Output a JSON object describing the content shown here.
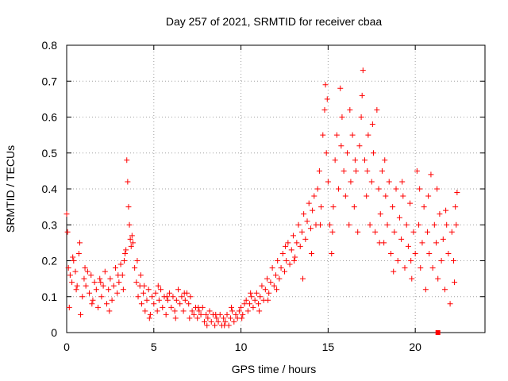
{
  "chart_data": {
    "type": "scatter",
    "title": "Day 257 of 2021, SRMTID for receiver cbaa",
    "xlabel": "GPS time / hours",
    "ylabel": "SRMTID / TECUs",
    "xlim": [
      0,
      24
    ],
    "ylim": [
      0,
      0.8
    ],
    "xticks": [
      0,
      5,
      10,
      15,
      20
    ],
    "yticks": [
      0,
      0.1,
      0.2,
      0.3,
      0.4,
      0.5,
      0.6,
      0.7,
      0.8
    ],
    "xtick_labels": [
      "0",
      "5",
      "10",
      "15",
      "20"
    ],
    "ytick_labels": [
      "0",
      "0.1",
      "0.2",
      "0.3",
      "0.4",
      "0.5",
      "0.6",
      "0.7",
      "0.8"
    ],
    "grid": true,
    "marker": "+",
    "color": "#ff0000",
    "series": [
      {
        "name": "SRMTID",
        "points": [
          [
            0.0,
            0.33
          ],
          [
            0.05,
            0.28
          ],
          [
            0.1,
            0.18
          ],
          [
            0.15,
            0.07
          ],
          [
            0.2,
            0.16
          ],
          [
            0.3,
            0.14
          ],
          [
            0.4,
            0.2
          ],
          [
            0.5,
            0.17
          ],
          [
            0.6,
            0.13
          ],
          [
            0.7,
            0.22
          ],
          [
            0.75,
            0.25
          ],
          [
            0.8,
            0.05
          ],
          [
            0.9,
            0.1
          ],
          [
            1.0,
            0.15
          ],
          [
            1.1,
            0.13
          ],
          [
            1.2,
            0.17
          ],
          [
            1.3,
            0.11
          ],
          [
            1.4,
            0.16
          ],
          [
            1.5,
            0.09
          ],
          [
            1.6,
            0.14
          ],
          [
            1.7,
            0.12
          ],
          [
            1.8,
            0.07
          ],
          [
            1.9,
            0.15
          ],
          [
            2.0,
            0.1
          ],
          [
            2.1,
            0.13
          ],
          [
            2.2,
            0.17
          ],
          [
            2.3,
            0.08
          ],
          [
            2.4,
            0.12
          ],
          [
            2.5,
            0.15
          ],
          [
            2.6,
            0.09
          ],
          [
            2.7,
            0.13
          ],
          [
            2.8,
            0.18
          ],
          [
            2.9,
            0.11
          ],
          [
            3.0,
            0.14
          ],
          [
            3.1,
            0.19
          ],
          [
            3.2,
            0.16
          ],
          [
            3.3,
            0.2
          ],
          [
            3.4,
            0.23
          ],
          [
            3.45,
            0.48
          ],
          [
            3.5,
            0.42
          ],
          [
            3.55,
            0.35
          ],
          [
            3.6,
            0.3
          ],
          [
            3.65,
            0.26
          ],
          [
            3.7,
            0.24
          ],
          [
            3.8,
            0.25
          ],
          [
            3.9,
            0.18
          ],
          [
            4.0,
            0.14
          ],
          [
            4.1,
            0.1
          ],
          [
            4.2,
            0.13
          ],
          [
            4.3,
            0.08
          ],
          [
            4.4,
            0.11
          ],
          [
            4.5,
            0.06
          ],
          [
            4.6,
            0.09
          ],
          [
            4.7,
            0.12
          ],
          [
            4.8,
            0.05
          ],
          [
            4.9,
            0.1
          ],
          [
            5.0,
            0.08
          ],
          [
            5.1,
            0.11
          ],
          [
            5.2,
            0.06
          ],
          [
            5.3,
            0.09
          ],
          [
            5.4,
            0.12
          ],
          [
            5.5,
            0.07
          ],
          [
            5.6,
            0.1
          ],
          [
            5.7,
            0.05
          ],
          [
            5.8,
            0.09
          ],
          [
            5.9,
            0.11
          ],
          [
            6.0,
            0.07
          ],
          [
            6.1,
            0.1
          ],
          [
            6.2,
            0.06
          ],
          [
            6.3,
            0.09
          ],
          [
            6.4,
            0.12
          ],
          [
            6.5,
            0.08
          ],
          [
            6.6,
            0.1
          ],
          [
            6.7,
            0.06
          ],
          [
            6.8,
            0.09
          ],
          [
            6.9,
            0.11
          ],
          [
            7.0,
            0.08
          ],
          [
            7.1,
            0.1
          ],
          [
            7.2,
            0.06
          ],
          [
            7.3,
            0.05
          ],
          [
            7.4,
            0.07
          ],
          [
            7.5,
            0.04
          ],
          [
            7.6,
            0.06
          ],
          [
            7.7,
            0.05
          ],
          [
            7.8,
            0.07
          ],
          [
            7.9,
            0.03
          ],
          [
            8.0,
            0.05
          ],
          [
            8.1,
            0.04
          ],
          [
            8.2,
            0.06
          ],
          [
            8.3,
            0.03
          ],
          [
            8.4,
            0.05
          ],
          [
            8.5,
            0.02
          ],
          [
            8.6,
            0.04
          ],
          [
            8.7,
            0.03
          ],
          [
            8.8,
            0.05
          ],
          [
            8.9,
            0.02
          ],
          [
            9.0,
            0.04
          ],
          [
            9.1,
            0.03
          ],
          [
            9.2,
            0.05
          ],
          [
            9.3,
            0.02
          ],
          [
            9.4,
            0.04
          ],
          [
            9.5,
            0.06
          ],
          [
            9.6,
            0.03
          ],
          [
            9.7,
            0.05
          ],
          [
            9.8,
            0.04
          ],
          [
            9.9,
            0.06
          ],
          [
            10.0,
            0.07
          ],
          [
            10.1,
            0.05
          ],
          [
            10.2,
            0.08
          ],
          [
            10.3,
            0.09
          ],
          [
            10.4,
            0.06
          ],
          [
            10.5,
            0.08
          ],
          [
            10.6,
            0.1
          ],
          [
            10.7,
            0.07
          ],
          [
            10.8,
            0.09
          ],
          [
            10.9,
            0.11
          ],
          [
            11.0,
            0.08
          ],
          [
            11.1,
            0.1
          ],
          [
            11.2,
            0.13
          ],
          [
            11.3,
            0.09
          ],
          [
            11.4,
            0.12
          ],
          [
            11.5,
            0.15
          ],
          [
            11.6,
            0.11
          ],
          [
            11.7,
            0.14
          ],
          [
            11.8,
            0.18
          ],
          [
            11.9,
            0.13
          ],
          [
            12.0,
            0.16
          ],
          [
            12.1,
            0.2
          ],
          [
            12.2,
            0.15
          ],
          [
            12.3,
            0.18
          ],
          [
            12.4,
            0.22
          ],
          [
            12.5,
            0.17
          ],
          [
            12.6,
            0.2
          ],
          [
            12.7,
            0.25
          ],
          [
            12.8,
            0.19
          ],
          [
            12.9,
            0.23
          ],
          [
            13.0,
            0.27
          ],
          [
            13.1,
            0.21
          ],
          [
            13.2,
            0.25
          ],
          [
            13.3,
            0.3
          ],
          [
            13.4,
            0.24
          ],
          [
            13.5,
            0.28
          ],
          [
            13.6,
            0.33
          ],
          [
            13.7,
            0.26
          ],
          [
            13.8,
            0.31
          ],
          [
            13.9,
            0.36
          ],
          [
            14.0,
            0.29
          ],
          [
            14.1,
            0.34
          ],
          [
            14.2,
            0.38
          ],
          [
            14.3,
            0.3
          ],
          [
            14.4,
            0.4
          ],
          [
            14.5,
            0.45
          ],
          [
            14.6,
            0.35
          ],
          [
            14.7,
            0.55
          ],
          [
            14.8,
            0.62
          ],
          [
            14.85,
            0.69
          ],
          [
            14.9,
            0.5
          ],
          [
            15.0,
            0.42
          ],
          [
            15.1,
            0.3
          ],
          [
            15.2,
            0.22
          ],
          [
            15.3,
            0.35
          ],
          [
            15.4,
            0.48
          ],
          [
            15.5,
            0.55
          ],
          [
            15.6,
            0.4
          ],
          [
            15.7,
            0.68
          ],
          [
            15.8,
            0.6
          ],
          [
            15.9,
            0.45
          ],
          [
            16.0,
            0.38
          ],
          [
            16.1,
            0.5
          ],
          [
            16.2,
            0.3
          ],
          [
            16.3,
            0.42
          ],
          [
            16.4,
            0.55
          ],
          [
            16.5,
            0.35
          ],
          [
            16.6,
            0.45
          ],
          [
            16.7,
            0.28
          ],
          [
            16.8,
            0.52
          ],
          [
            16.9,
            0.6
          ],
          [
            17.0,
            0.73
          ],
          [
            17.1,
            0.48
          ],
          [
            17.2,
            0.38
          ],
          [
            17.3,
            0.55
          ],
          [
            17.4,
            0.3
          ],
          [
            17.5,
            0.42
          ],
          [
            17.6,
            0.5
          ],
          [
            17.7,
            0.28
          ],
          [
            17.8,
            0.62
          ],
          [
            17.9,
            0.4
          ],
          [
            18.0,
            0.33
          ],
          [
            18.1,
            0.45
          ],
          [
            18.2,
            0.25
          ],
          [
            18.3,
            0.38
          ],
          [
            18.4,
            0.3
          ],
          [
            18.5,
            0.42
          ],
          [
            18.6,
            0.22
          ],
          [
            18.7,
            0.35
          ],
          [
            18.8,
            0.28
          ],
          [
            18.9,
            0.4
          ],
          [
            19.0,
            0.2
          ],
          [
            19.1,
            0.32
          ],
          [
            19.2,
            0.26
          ],
          [
            19.3,
            0.38
          ],
          [
            19.4,
            0.18
          ],
          [
            19.5,
            0.3
          ],
          [
            19.6,
            0.24
          ],
          [
            19.7,
            0.36
          ],
          [
            19.8,
            0.15
          ],
          [
            19.9,
            0.28
          ],
          [
            20.0,
            0.22
          ],
          [
            20.1,
            0.45
          ],
          [
            20.2,
            0.3
          ],
          [
            20.3,
            0.18
          ],
          [
            20.4,
            0.25
          ],
          [
            20.5,
            0.35
          ],
          [
            20.6,
            0.12
          ],
          [
            20.7,
            0.28
          ],
          [
            20.8,
            0.22
          ],
          [
            20.9,
            0.44
          ],
          [
            21.0,
            0.18
          ],
          [
            21.1,
            0.3
          ],
          [
            21.2,
            0.25
          ],
          [
            21.3,
            0.15
          ],
          [
            21.4,
            0.33
          ],
          [
            21.5,
            0.2
          ],
          [
            21.6,
            0.26
          ],
          [
            21.7,
            0.12
          ],
          [
            21.8,
            0.3
          ],
          [
            21.9,
            0.22
          ],
          [
            22.0,
            0.08
          ],
          [
            22.1,
            0.28
          ],
          [
            22.2,
            0.2
          ],
          [
            22.3,
            0.35
          ],
          [
            22.4,
            0.39
          ],
          [
            0.35,
            0.21
          ],
          [
            0.55,
            0.12
          ],
          [
            1.05,
            0.18
          ],
          [
            1.45,
            0.08
          ],
          [
            1.95,
            0.14
          ],
          [
            2.45,
            0.06
          ],
          [
            2.95,
            0.16
          ],
          [
            3.25,
            0.12
          ],
          [
            3.35,
            0.22
          ],
          [
            3.75,
            0.27
          ],
          [
            4.05,
            0.2
          ],
          [
            4.25,
            0.16
          ],
          [
            4.45,
            0.13
          ],
          [
            4.75,
            0.04
          ],
          [
            5.25,
            0.13
          ],
          [
            5.75,
            0.1
          ],
          [
            6.25,
            0.04
          ],
          [
            6.75,
            0.11
          ],
          [
            7.05,
            0.04
          ],
          [
            7.55,
            0.07
          ],
          [
            8.05,
            0.02
          ],
          [
            8.55,
            0.05
          ],
          [
            9.05,
            0.02
          ],
          [
            9.45,
            0.07
          ],
          [
            10.05,
            0.04
          ],
          [
            10.55,
            0.11
          ],
          [
            11.05,
            0.06
          ],
          [
            11.55,
            0.09
          ],
          [
            12.05,
            0.12
          ],
          [
            12.55,
            0.24
          ],
          [
            13.05,
            0.2
          ],
          [
            13.55,
            0.15
          ],
          [
            14.05,
            0.22
          ],
          [
            14.55,
            0.3
          ],
          [
            14.95,
            0.65
          ],
          [
            15.25,
            0.28
          ],
          [
            15.75,
            0.52
          ],
          [
            16.25,
            0.62
          ],
          [
            16.55,
            0.48
          ],
          [
            16.95,
            0.66
          ],
          [
            17.25,
            0.45
          ],
          [
            17.55,
            0.58
          ],
          [
            17.95,
            0.25
          ],
          [
            18.25,
            0.48
          ],
          [
            18.75,
            0.17
          ],
          [
            19.25,
            0.42
          ],
          [
            19.75,
            0.2
          ],
          [
            20.25,
            0.4
          ],
          [
            20.75,
            0.38
          ],
          [
            21.25,
            0.4
          ],
          [
            21.75,
            0.34
          ],
          [
            22.25,
            0.14
          ],
          [
            22.35,
            0.3
          ]
        ]
      }
    ],
    "outlier_marker": {
      "x": 21.3,
      "y": 0.0,
      "shape": "square"
    }
  }
}
